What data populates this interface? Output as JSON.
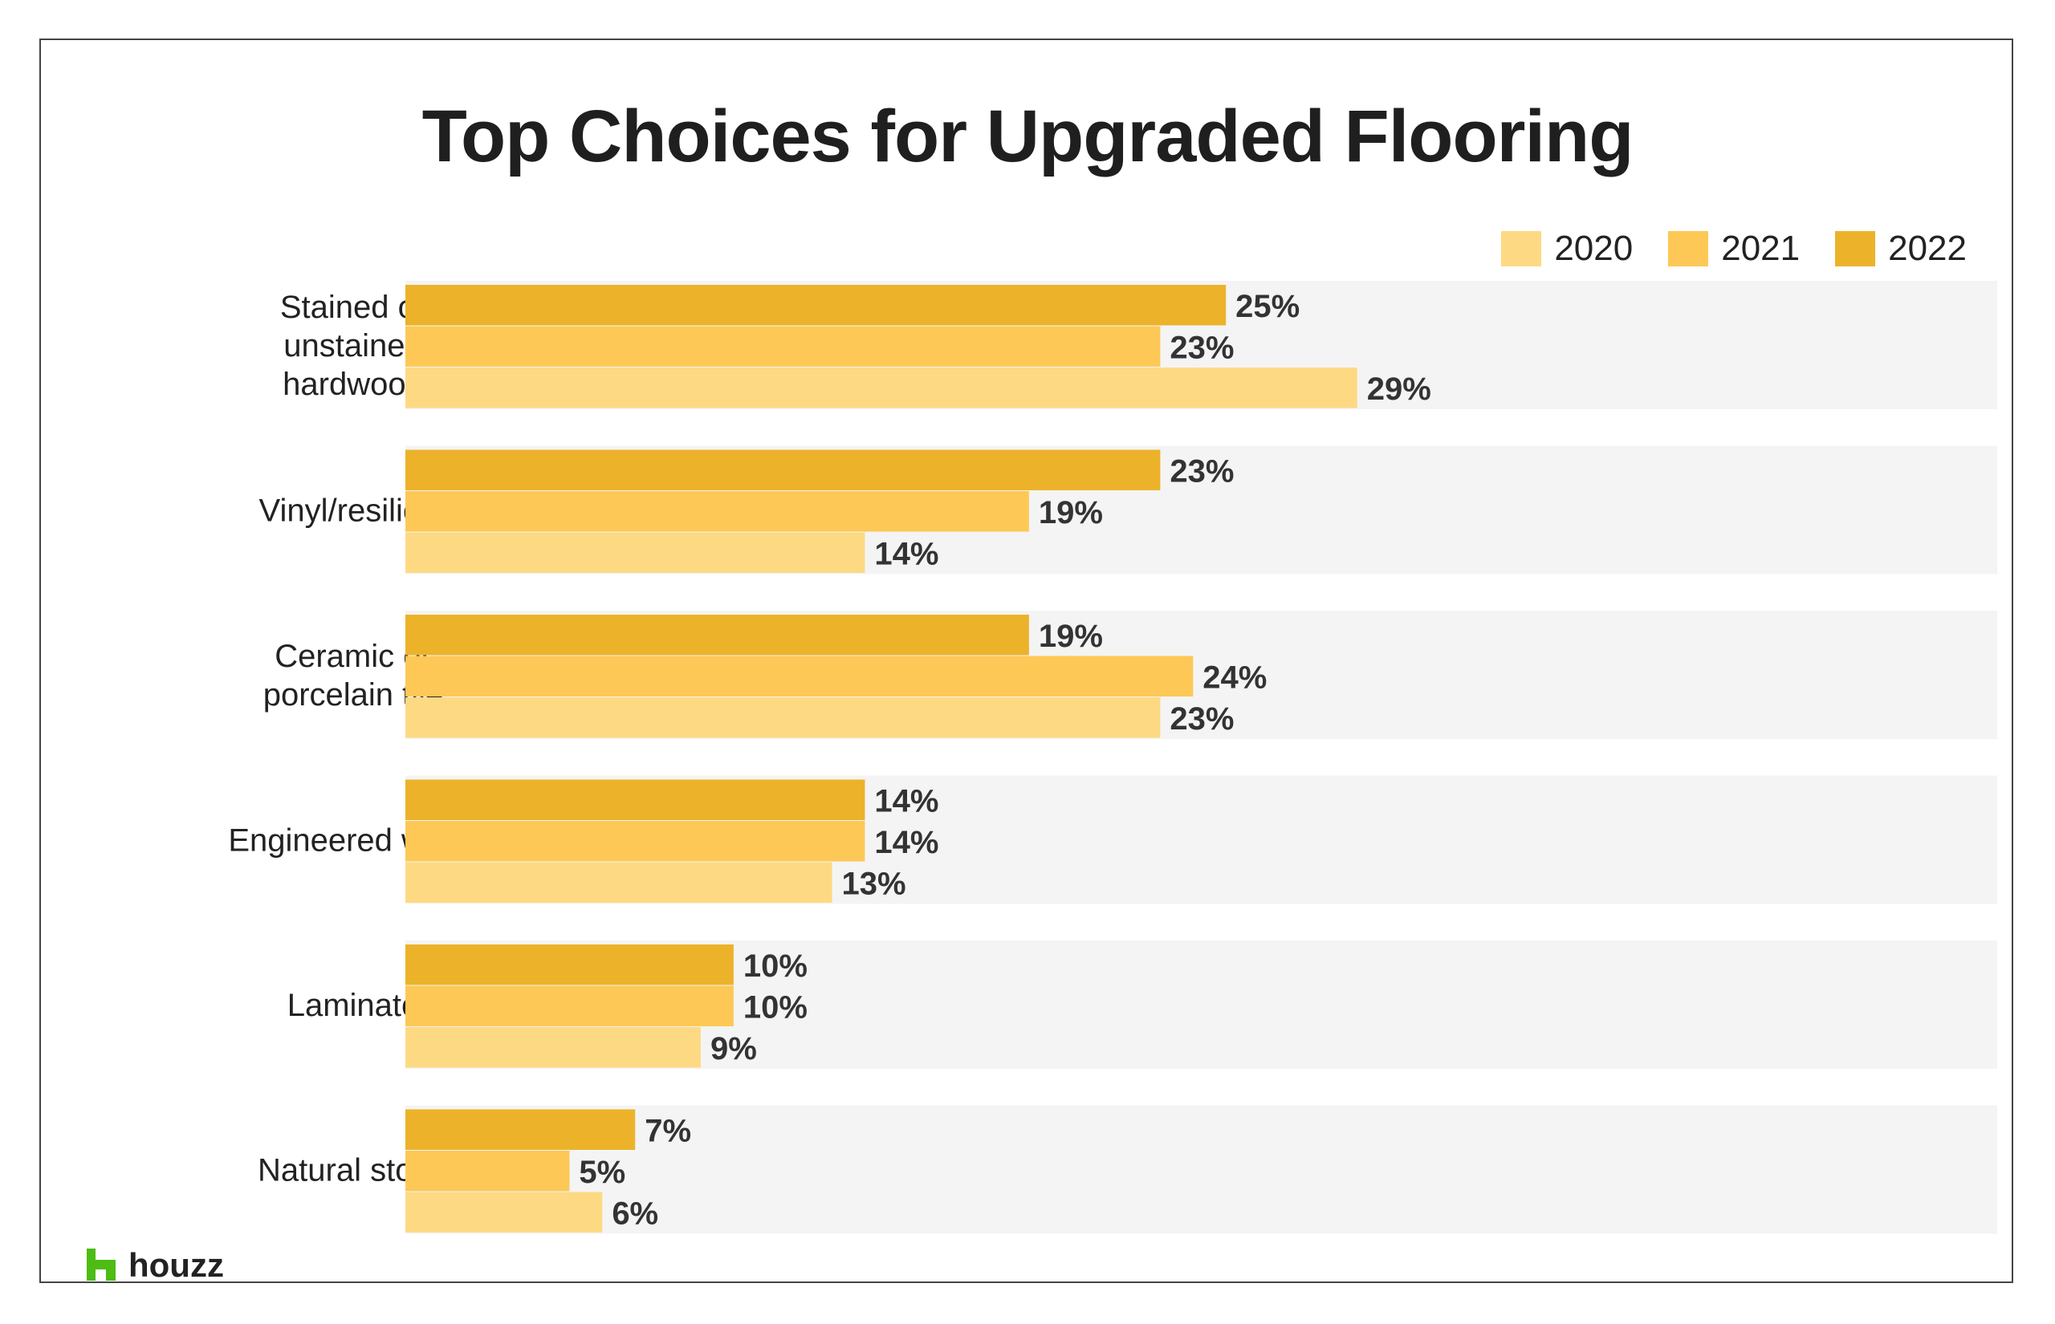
{
  "chart_data": {
    "type": "bar",
    "orientation": "horizontal",
    "title": "Top Choices for Upgraded Flooring",
    "categories": [
      "Stained or\nunstained\nhardwood",
      "Vinyl/resilient",
      "Ceramic or\nporcelain tile",
      "Engineered wood",
      "Laminate",
      "Natural stone"
    ],
    "series": [
      {
        "name": "2022",
        "values": [
          25,
          23,
          19,
          14,
          10,
          7
        ],
        "labels": [
          "25%",
          "23%",
          "19%",
          "14%",
          "10%",
          "7%"
        ],
        "color": "#ECB22A"
      },
      {
        "name": "2021",
        "values": [
          23,
          19,
          24,
          14,
          10,
          5
        ],
        "labels": [
          "23%",
          "19%",
          "24%",
          "14%",
          "10%",
          "5%"
        ],
        "color": "#FDC855"
      },
      {
        "name": "2020",
        "values": [
          29,
          14,
          23,
          13,
          9,
          6
        ],
        "labels": [
          "29%",
          "14%",
          "23%",
          "13%",
          "9%",
          "6%"
        ],
        "color": "#FED983"
      }
    ],
    "xlim": [
      0,
      48.5
    ],
    "legend_order": [
      "2020",
      "2021",
      "2022"
    ],
    "legend_position": "top-right",
    "grid": false,
    "background_band_color": "#F4F4F4"
  },
  "logo": {
    "text": "houzz",
    "color": "#4DBC15"
  }
}
